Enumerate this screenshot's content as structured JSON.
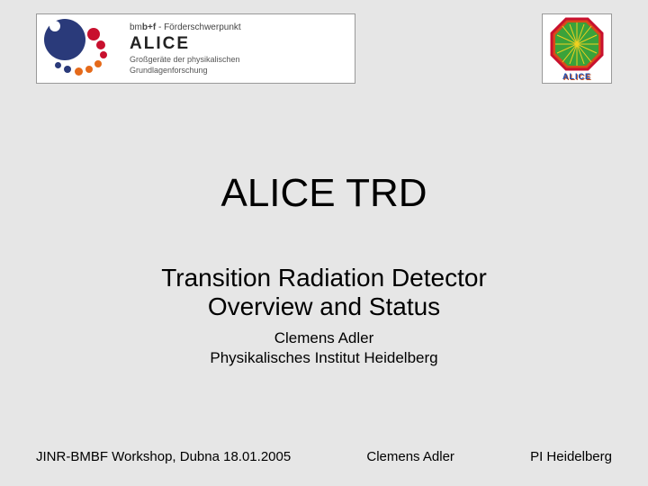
{
  "header": {
    "bmbf_html": "bm<b>b+f</b> - Förderschwerpunkt",
    "alice": "ALICE",
    "sub_line1": "Großgeräte der physikalischen",
    "sub_line2": "Grundlagenforschung",
    "alice_small": "ALICE",
    "dot_colors": {
      "big_blue": "#2a3a7a",
      "red": "#c8102e",
      "orange": "#e56a1a"
    },
    "octagon": {
      "frame": "#c8102e",
      "fill1": "#d94a1a",
      "fill2": "#3aa23a",
      "ray": "#f0d020"
    }
  },
  "title": "ALICE TRD",
  "subtitle_line1": "Transition Radiation Detector",
  "subtitle_line2": "Overview and Status",
  "author_name": "Clemens Adler",
  "author_inst": "Physikalisches Institut Heidelberg",
  "footer": {
    "left": "JINR-BMBF Workshop, Dubna 18.01.2005",
    "center": "Clemens Adler",
    "right": "PI Heidelberg"
  }
}
